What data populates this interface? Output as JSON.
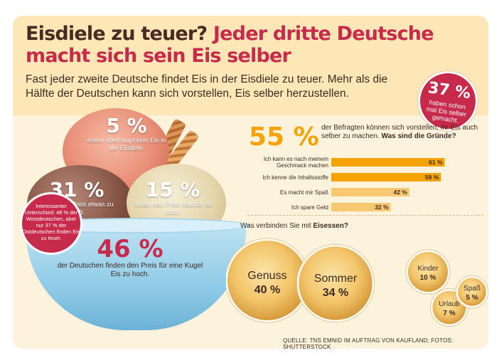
{
  "header": {
    "title_part1": "Eisdiele zu teuer?",
    "title_part2": "Jeder dritte Deutsche macht sich sein Eis selber",
    "intro": "Fast jeder zweite Deutsche findet Eis in der Eisdiele zu teuer. Mehr als die Hälfte der Deutschen kann sich vorstellen, Eis selber herzustellen."
  },
  "badge_37": {
    "value": "37 %",
    "text": "haben schon mal Eis selber gemacht."
  },
  "illustration_stats": {
    "s5": {
      "value": "5 %",
      "text": "essen überhaupt kein Eis in der Eisdiele."
    },
    "s31": {
      "value": "31 %",
      "text": "finden den Preis etwas zu hoch."
    },
    "s15": {
      "value": "15 %",
      "text": "finden den Preis deutlich zu hoch."
    },
    "s46": {
      "value": "46 %",
      "text": "der Deutschen finden den Preis für eine Kugel Eis zu hoch."
    }
  },
  "badge_interesting": {
    "text": "Interessanter Unterschied: 48 % der Westdeutschen, aber nur 37 % der Ostdeutschen finden Eis zu teuer."
  },
  "reasons": {
    "value": "55 %",
    "intro": "der Befragten können sich vorstellen, ihr Eis auch selber zu machen.",
    "question": "Was sind die Gründe?"
  },
  "associations": {
    "question_prefix": "Was verbinden Sie mit",
    "question_bold": "Eisessen?"
  },
  "source": "QUELLE: TNS EMNID IM AUFTRAG VON KAUFLAND; FOTOS: SHUTTERSTOCK",
  "colors": {
    "accent_red": "#c82a4c",
    "accent_orange": "#f4a300",
    "bar_light": "#f8c870",
    "text_dark": "#3c2a22"
  },
  "chart_data": [
    {
      "type": "bar",
      "orientation": "horizontal",
      "categories": [
        "Ich kann es nach meinem Geschmack machen",
        "Ich kenne die Inhaltsstoffe",
        "Es macht mir Spaß",
        "Ich spare Geld"
      ],
      "values": [
        61,
        59,
        42,
        32
      ],
      "value_labels": [
        "61 %",
        "59 %",
        "42 %",
        "32 %"
      ],
      "unit": "%",
      "xlim": [
        0,
        65
      ]
    },
    {
      "type": "bubble",
      "categories": [
        "Genuss",
        "Sommer",
        "Kinder",
        "Urlaub",
        "Spaß"
      ],
      "values": [
        40,
        34,
        10,
        7,
        5
      ],
      "value_labels": [
        "40 %",
        "34 %",
        "10 %",
        "7 %",
        "5 %"
      ],
      "unit": "%"
    }
  ]
}
